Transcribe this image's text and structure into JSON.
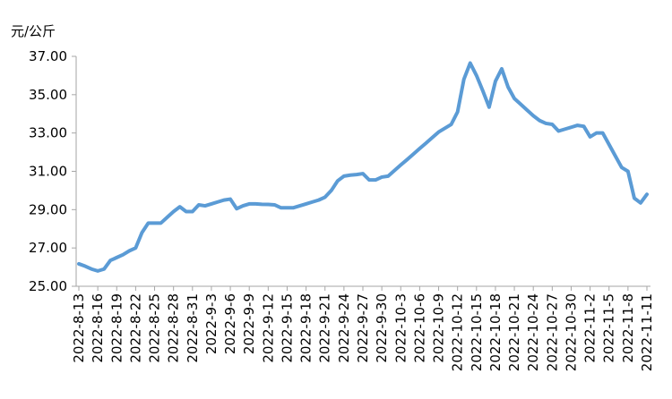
{
  "chart_data": {
    "type": "line",
    "y_label": "元/公斤",
    "categories": [
      "2022-8-13",
      null,
      null,
      "2022-8-16",
      null,
      null,
      "2022-8-19",
      null,
      null,
      "2022-8-22",
      null,
      null,
      "2022-8-25",
      null,
      null,
      "2022-8-28",
      null,
      null,
      "2022-8-31",
      null,
      null,
      "2022-9-3",
      null,
      null,
      "2022-9-6",
      null,
      null,
      "2022-9-9",
      null,
      null,
      "2022-9-12",
      null,
      null,
      "2022-9-15",
      null,
      null,
      "2022-9-18",
      null,
      null,
      "2022-9-21",
      null,
      null,
      "2022-9-24",
      null,
      null,
      "2022-9-27",
      null,
      null,
      "2022-9-30",
      null,
      null,
      "2022-10-3",
      null,
      null,
      "2022-10-6",
      null,
      null,
      "2022-10-9",
      null,
      null,
      "2022-10-12",
      null,
      null,
      "2022-10-15",
      null,
      null,
      "2022-10-18",
      null,
      null,
      "2022-10-21",
      null,
      null,
      "2022-10-24",
      null,
      null,
      "2022-10-27",
      null,
      null,
      "2022-10-30",
      null,
      null,
      "2022-11-2",
      null,
      null,
      "2022-11-5",
      null,
      null,
      "2022-11-8",
      null,
      null,
      "2022-11-11"
    ],
    "values": [
      26.17,
      26.05,
      25.9,
      25.8,
      25.9,
      26.35,
      26.5,
      26.65,
      26.85,
      27.0,
      27.8,
      28.3,
      28.3,
      28.3,
      28.6,
      28.9,
      29.15,
      28.9,
      28.9,
      29.25,
      29.2,
      29.3,
      29.4,
      29.5,
      29.55,
      29.05,
      29.2,
      29.3,
      29.3,
      29.28,
      29.27,
      29.25,
      29.1,
      29.1,
      29.1,
      29.2,
      29.3,
      29.4,
      29.5,
      29.65,
      30.0,
      30.5,
      30.75,
      30.8,
      30.83,
      30.88,
      30.55,
      30.55,
      30.7,
      30.75,
      31.04,
      31.33,
      31.61,
      31.9,
      32.19,
      32.47,
      32.76,
      33.05,
      33.25,
      33.45,
      34.1,
      35.8,
      36.65,
      36.0,
      35.2,
      34.35,
      35.7,
      36.35,
      35.4,
      34.8,
      34.5,
      34.2,
      33.9,
      33.65,
      33.5,
      33.45,
      33.1,
      33.2,
      33.3,
      33.4,
      33.35,
      32.8,
      33.0,
      33.0,
      32.4,
      31.8,
      31.2,
      31.0,
      29.6,
      29.35,
      29.8
    ],
    "color": "#5b9bd5",
    "ylim": [
      25,
      37
    ],
    "yticks": [
      {
        "value": 25,
        "label": "25.00"
      },
      {
        "value": 27,
        "label": "27.00"
      },
      {
        "value": 29,
        "label": "29.00"
      },
      {
        "value": 31,
        "label": "31.00"
      },
      {
        "value": 33,
        "label": "33.00"
      },
      {
        "value": 35,
        "label": "35.00"
      },
      {
        "value": 37,
        "label": "37.00"
      }
    ],
    "grid": false
  }
}
